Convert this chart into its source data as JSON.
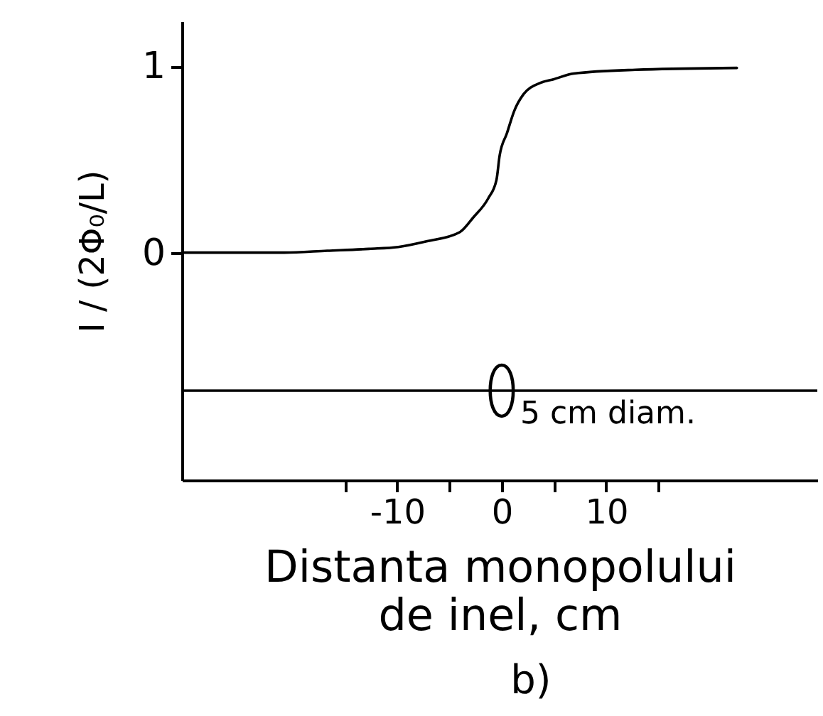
{
  "chart_data": {
    "type": "line",
    "xlabel": "Distanta monopolului de inel, cm",
    "ylabel": "I / (2Φ₀/L)",
    "series": [
      {
        "color": "#000000",
        "x": [
          -30.6,
          -20.8,
          -16.7,
          -12.7,
          -9.9,
          -7.2,
          -4,
          -2.7,
          -1.3,
          -0.5,
          -0.2,
          0.5,
          1.2,
          2.1,
          3.7,
          5,
          6.9,
          12.8,
          22.5
        ],
        "values": [
          0,
          0,
          0.01,
          0.02,
          0.03,
          0.06,
          0.11,
          0.19,
          0.29,
          0.39,
          0.52,
          0.64,
          0.76,
          0.85,
          0.91,
          0.93,
          0.96,
          0.98,
          0.99
        ]
      },
      {
        "type": "scatter",
        "color": "#000000",
        "marker": "circle",
        "x": [
          0
        ],
        "values": [
          -0.74
        ]
      }
    ],
    "xlim": [
      -30.6,
      30.2
    ],
    "xticks": [
      {
        "value": -15,
        "label": null
      },
      -10,
      {
        "value": -5,
        "label": null
      },
      0,
      {
        "value": 5,
        "label": null
      },
      10,
      {
        "value": 15,
        "label": null
      }
    ],
    "ylim": [
      -1.22,
      1.24
    ],
    "yticks": [
      0,
      1
    ],
    "ref_lines": [
      {
        "axis": "y",
        "value": -0.74,
        "color": "#000000"
      }
    ],
    "annotations": [
      {
        "text": "5 cm diam.",
        "x": 0,
        "y": -0.74
      },
      "b)"
    ],
    "marker": "none"
  }
}
